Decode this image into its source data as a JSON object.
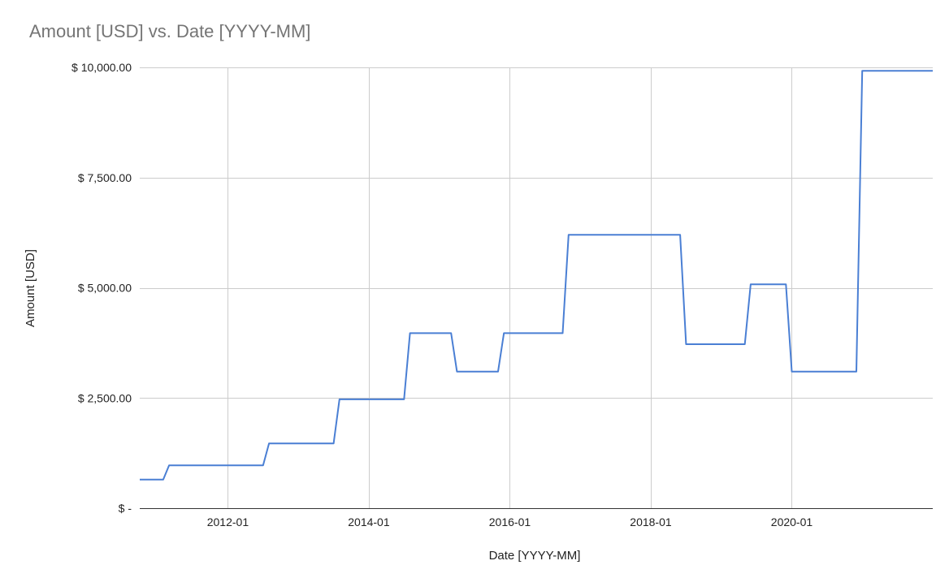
{
  "chart_data": {
    "type": "line",
    "title": "Amount [USD]  vs. Date [YYYY-MM]",
    "xlabel": "Date [YYYY-MM]",
    "ylabel": "Amount [USD]",
    "x_axis_type": "date",
    "xlim": [
      "2010-10",
      "2022-01"
    ],
    "ylim": [
      0,
      10000
    ],
    "x_ticks": [
      "2012-01",
      "2014-01",
      "2016-01",
      "2018-01",
      "2020-01"
    ],
    "y_ticks": [
      {
        "value": 0,
        "label": "$ -"
      },
      {
        "value": 2500,
        "label": "$ 2,500.00"
      },
      {
        "value": 5000,
        "label": "$ 5,000.00"
      },
      {
        "value": 7500,
        "label": "$ 7,500.00"
      },
      {
        "value": 10000,
        "label": "$ 10,000.00"
      }
    ],
    "grid": true,
    "legend": "none",
    "colors": {
      "line": "#4a7fd4"
    },
    "series": [
      {
        "x": [
          "2010-10",
          "2011-02",
          "2011-03",
          "2012-07",
          "2012-08",
          "2013-07",
          "2013-08",
          "2014-07",
          "2014-08",
          "2015-03",
          "2015-04",
          "2015-11",
          "2015-12",
          "2016-10",
          "2016-11",
          "2018-06",
          "2018-07",
          "2019-05",
          "2019-06",
          "2019-12",
          "2020-01",
          "2020-12",
          "2021-01",
          "2022-01"
        ],
        "y": [
          650,
          650,
          970,
          970,
          1470,
          1470,
          2470,
          2470,
          3970,
          3970,
          3100,
          3100,
          3970,
          3970,
          6200,
          6200,
          3720,
          3720,
          5080,
          5080,
          3100,
          3100,
          9920,
          9920
        ]
      }
    ]
  }
}
